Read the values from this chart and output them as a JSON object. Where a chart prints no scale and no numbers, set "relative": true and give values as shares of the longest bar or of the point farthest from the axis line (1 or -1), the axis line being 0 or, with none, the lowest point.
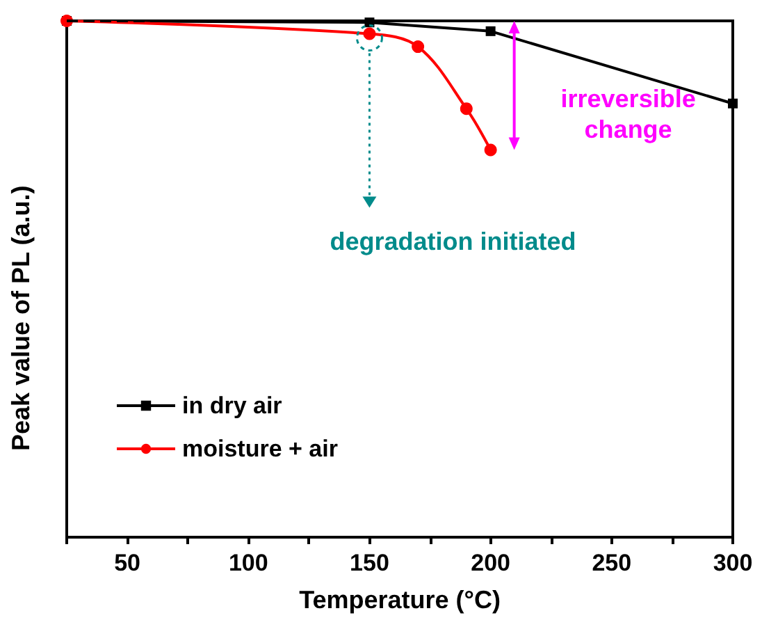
{
  "chart_data": {
    "type": "line",
    "relative": true,
    "xlabel": "Temperature (°C)",
    "ylabel": "Peak value of PL (a.u.)",
    "xlim": [
      25,
      300
    ],
    "xticks": [
      {
        "value": 25,
        "label": null
      },
      50,
      {
        "value": 75,
        "label": null
      },
      100,
      {
        "value": 125,
        "label": null
      },
      150,
      {
        "value": 175,
        "label": null
      },
      200,
      {
        "value": 225,
        "label": null
      },
      250,
      {
        "value": 275,
        "label": null
      },
      300
    ],
    "series": [
      {
        "name": "in dry air",
        "color": "#000000",
        "marker": "square",
        "x": [
          25,
          150,
          200,
          300
        ],
        "values": [
          1,
          0.997,
          0.98,
          0.84
        ]
      },
      {
        "name": "moisture + air",
        "color": "#ff0000",
        "marker": "circle",
        "x": [
          25,
          150,
          170,
          190,
          200
        ],
        "values": [
          1,
          0.975,
          0.95,
          0.83,
          0.75
        ]
      }
    ],
    "ref_lines": [
      {
        "axis": "y",
        "value": 1,
        "color": "#000000",
        "line_style": "dashed"
      }
    ],
    "annotations": [
      "degradation initiated",
      "irreversible change"
    ],
    "legend": "bottom left",
    "grid": false
  }
}
